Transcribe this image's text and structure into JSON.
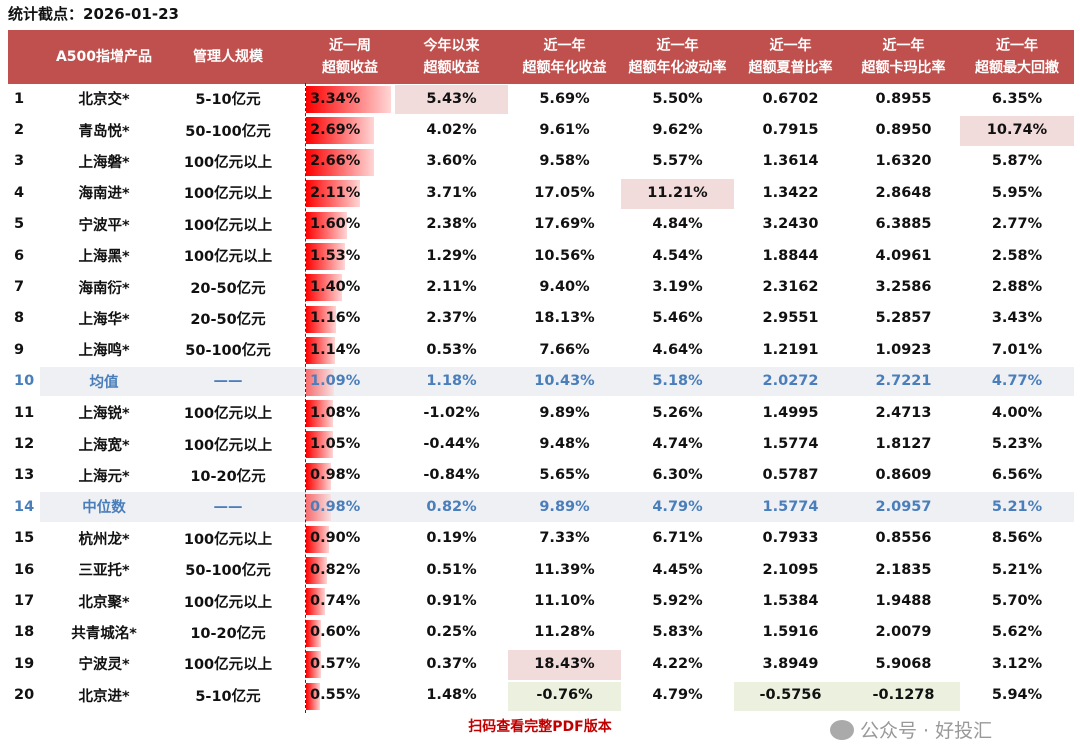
{
  "title": "统计截点：2026-01-23",
  "colors": {
    "header_bg": "#c0504d",
    "pink": "#f2dcdb",
    "green": "#ebf1de",
    "stat_text": "#4a7ebb",
    "bar": "#ff0000"
  },
  "headers": [
    {
      "l1": "",
      "l2": ""
    },
    {
      "l1": "A500指增产品",
      "l2": ""
    },
    {
      "l1": "管理人规模",
      "l2": ""
    },
    {
      "l1": "近一周",
      "l2": "超额收益"
    },
    {
      "l1": "今年以来",
      "l2": "超额收益"
    },
    {
      "l1": "近一年",
      "l2": "超额年化收益"
    },
    {
      "l1": "近一年",
      "l2": "超额年化波动率"
    },
    {
      "l1": "近一年",
      "l2": "超额夏普比率"
    },
    {
      "l1": "近一年",
      "l2": "超额卡玛比率"
    },
    {
      "l1": "近一年",
      "l2": "超额最大回撤"
    }
  ],
  "rows": [
    {
      "c": [
        "1",
        "北京交*",
        "5-10亿元",
        "3.34%",
        "5.43%",
        "5.69%",
        "5.50%",
        "0.6702",
        "0.8955",
        "6.35%"
      ],
      "hl": {
        "4": "pink"
      }
    },
    {
      "c": [
        "2",
        "青岛悦*",
        "50-100亿元",
        "2.69%",
        "4.02%",
        "9.61%",
        "9.62%",
        "0.7915",
        "0.8950",
        "10.74%"
      ],
      "hl": {
        "9": "pink"
      }
    },
    {
      "c": [
        "3",
        "上海磐*",
        "100亿元以上",
        "2.66%",
        "3.60%",
        "9.58%",
        "5.57%",
        "1.3614",
        "1.6320",
        "5.87%"
      ]
    },
    {
      "c": [
        "4",
        "海南进*",
        "100亿元以上",
        "2.11%",
        "3.71%",
        "17.05%",
        "11.21%",
        "1.3422",
        "2.8648",
        "5.95%"
      ],
      "hl": {
        "6": "pink"
      }
    },
    {
      "c": [
        "5",
        "宁波平*",
        "100亿元以上",
        "1.60%",
        "2.38%",
        "17.69%",
        "4.84%",
        "3.2430",
        "6.3885",
        "2.77%"
      ]
    },
    {
      "c": [
        "6",
        "上海黑*",
        "100亿元以上",
        "1.53%",
        "1.29%",
        "10.56%",
        "4.54%",
        "1.8844",
        "4.0961",
        "2.58%"
      ]
    },
    {
      "c": [
        "7",
        "海南衍*",
        "20-50亿元",
        "1.40%",
        "2.11%",
        "9.40%",
        "3.19%",
        "2.3162",
        "3.2586",
        "2.88%"
      ]
    },
    {
      "c": [
        "8",
        "上海华*",
        "20-50亿元",
        "1.16%",
        "2.37%",
        "18.13%",
        "5.46%",
        "2.9551",
        "5.2857",
        "3.43%"
      ]
    },
    {
      "c": [
        "9",
        "上海鸣*",
        "50-100亿元",
        "1.14%",
        "0.53%",
        "7.66%",
        "4.64%",
        "1.2191",
        "1.0923",
        "7.01%"
      ]
    },
    {
      "c": [
        "10",
        "均值",
        "——",
        "1.09%",
        "1.18%",
        "10.43%",
        "5.18%",
        "2.0272",
        "2.7221",
        "4.77%"
      ],
      "stat": true
    },
    {
      "c": [
        "11",
        "上海锐*",
        "100亿元以上",
        "1.08%",
        "-1.02%",
        "9.89%",
        "5.26%",
        "1.4995",
        "2.4713",
        "4.00%"
      ]
    },
    {
      "c": [
        "12",
        "上海宽*",
        "100亿元以上",
        "1.05%",
        "-0.44%",
        "9.48%",
        "4.74%",
        "1.5774",
        "1.8127",
        "5.23%"
      ]
    },
    {
      "c": [
        "13",
        "上海元*",
        "10-20亿元",
        "0.98%",
        "-0.84%",
        "5.65%",
        "6.30%",
        "0.5787",
        "0.8609",
        "6.56%"
      ]
    },
    {
      "c": [
        "14",
        "中位数",
        "——",
        "0.98%",
        "0.82%",
        "9.89%",
        "4.79%",
        "1.5774",
        "2.0957",
        "5.21%"
      ],
      "stat": true
    },
    {
      "c": [
        "15",
        "杭州龙*",
        "100亿元以上",
        "0.90%",
        "0.19%",
        "7.33%",
        "6.71%",
        "0.7933",
        "0.8556",
        "8.56%"
      ]
    },
    {
      "c": [
        "16",
        "三亚托*",
        "50-100亿元",
        "0.82%",
        "0.51%",
        "11.39%",
        "4.45%",
        "2.1095",
        "2.1835",
        "5.21%"
      ]
    },
    {
      "c": [
        "17",
        "北京聚*",
        "100亿元以上",
        "0.74%",
        "0.91%",
        "11.10%",
        "5.92%",
        "1.5384",
        "1.9488",
        "5.70%"
      ]
    },
    {
      "c": [
        "18",
        "共青城洺*",
        "10-20亿元",
        "0.60%",
        "0.25%",
        "11.28%",
        "5.83%",
        "1.5916",
        "2.0079",
        "5.62%"
      ]
    },
    {
      "c": [
        "19",
        "宁波灵*",
        "100亿元以上",
        "0.57%",
        "0.37%",
        "18.43%",
        "4.22%",
        "3.8949",
        "5.9068",
        "3.12%"
      ],
      "hl": {
        "5": "pink"
      }
    },
    {
      "c": [
        "20",
        "北京进*",
        "5-10亿元",
        "0.55%",
        "1.48%",
        "-0.76%",
        "4.79%",
        "-0.5756",
        "-0.1278",
        "5.94%"
      ],
      "hl": {
        "5": "green",
        "7": "green",
        "8": "green"
      }
    }
  ],
  "footer": "扫码查看完整PDF版本",
  "watermark": "公众号 · 好投汇"
}
